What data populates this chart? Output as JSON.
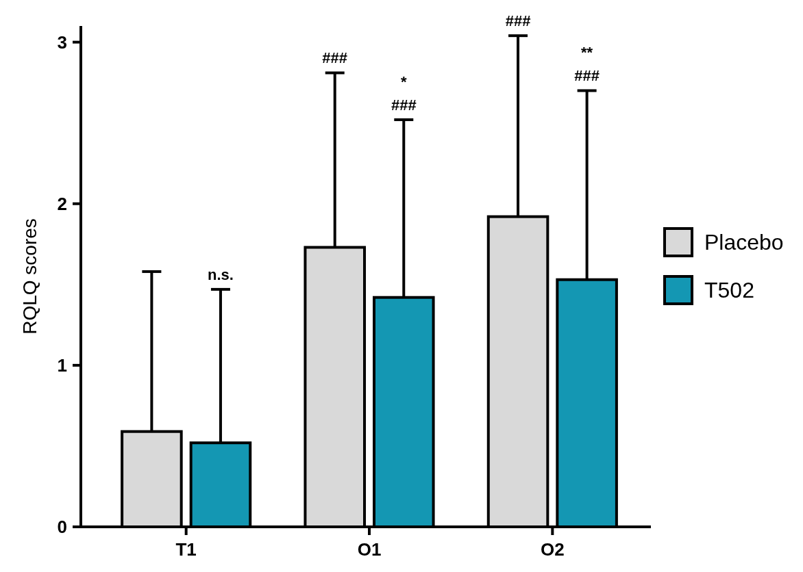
{
  "chart_data": {
    "type": "bar",
    "ylabel": "RQLQ scores",
    "categories": [
      "T1",
      "O1",
      "O2"
    ],
    "ylim": [
      0,
      3.1
    ],
    "yticks": [
      0,
      1,
      2,
      3
    ],
    "grid": false,
    "legend": "right",
    "series": [
      {
        "name": "Placebo",
        "color": "#d9d9d9",
        "values": [
          0.59,
          1.73,
          1.92
        ],
        "errors": [
          [
            0.59,
            1.58
          ],
          [
            1.73,
            2.81
          ],
          [
            1.92,
            3.04
          ]
        ]
      },
      {
        "name": "T502",
        "color": "#1497b3",
        "values": [
          0.52,
          1.42,
          1.53
        ],
        "errors": [
          [
            0.52,
            1.47
          ],
          [
            1.42,
            2.52
          ],
          [
            1.53,
            2.7
          ]
        ]
      }
    ],
    "annotations": [
      "n.s.",
      "###",
      "###",
      "*",
      "###",
      "###",
      "**"
    ]
  }
}
